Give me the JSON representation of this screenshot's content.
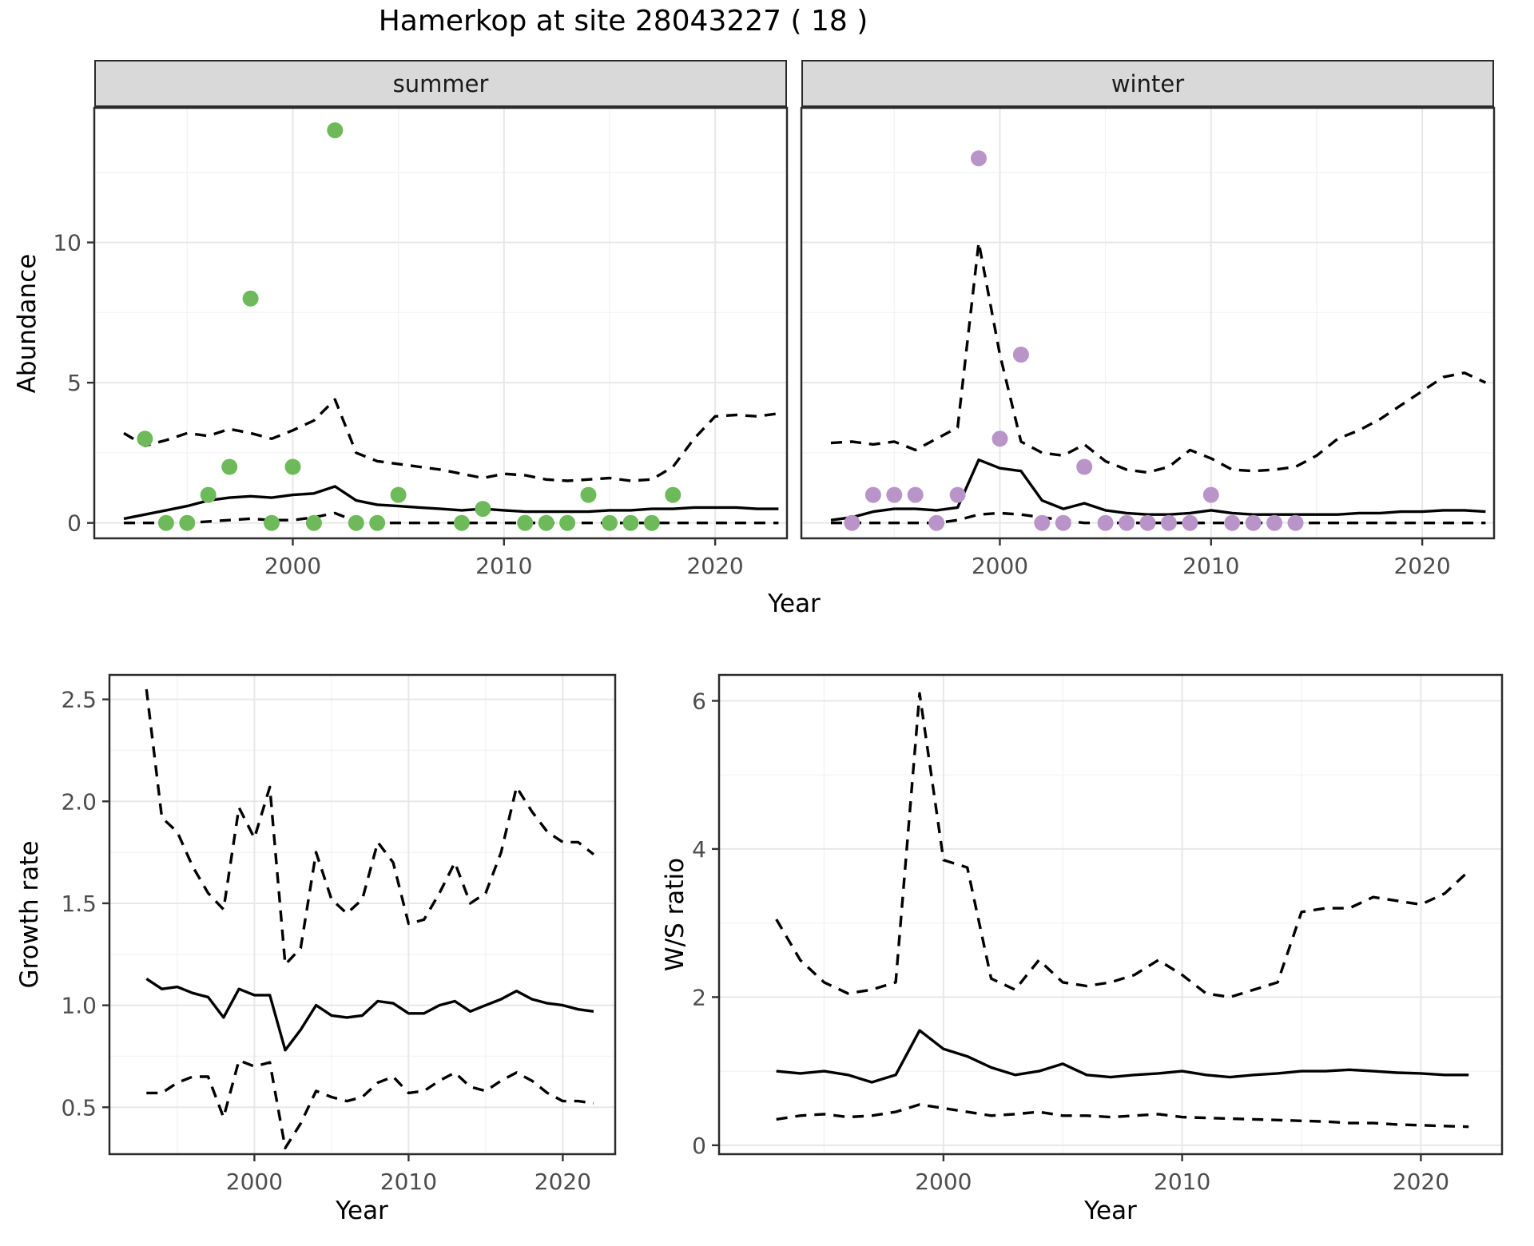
{
  "title": "Hamerkop at site 28043227 ( 18 )",
  "labels": {
    "x_axis": "Year",
    "y_axis_abundance": "Abundance",
    "y_axis_growth": "Growth rate",
    "y_axis_ws": "W/S ratio",
    "facet_summer": "summer",
    "facet_winter": "winter"
  },
  "colors": {
    "summer_points": "#6eb95a",
    "winter_points": "#b994c8",
    "line": "#000000",
    "strip_bg": "#d9d9d9",
    "panel_bg": "#ffffff",
    "panel_border": "#2b2b2b",
    "grid_major": "#e7e7e7",
    "grid_minor": "#f3f3f3",
    "tick_text": "#4d4d4d"
  },
  "chart_data": [
    {
      "id": "abundance_summer",
      "type": "scatter",
      "title": "summer",
      "xlabel": "Year",
      "ylabel": "Abundance",
      "xlim": [
        1990.6,
        2023.4
      ],
      "ylim": [
        -0.55,
        14.8
      ],
      "xticks": [
        2000,
        2010,
        2020
      ],
      "xticklabels": [
        "2000",
        "2010",
        "2020"
      ],
      "xminor": [
        1995,
        2005,
        2015
      ],
      "yticks": [
        0,
        5,
        10
      ],
      "yticklabels": [
        "0",
        "5",
        "10"
      ],
      "yminor": [
        2.5,
        7.5,
        12.5
      ],
      "show_ylabels": true,
      "point_color": "#6eb95a",
      "points": [
        [
          1993,
          3
        ],
        [
          1994,
          0
        ],
        [
          1995,
          0
        ],
        [
          1996,
          1
        ],
        [
          1997,
          2
        ],
        [
          1998,
          8
        ],
        [
          1999,
          0
        ],
        [
          2000,
          2
        ],
        [
          2001,
          0
        ],
        [
          2002,
          14
        ],
        [
          2003,
          0
        ],
        [
          2004,
          0
        ],
        [
          2005,
          1
        ],
        [
          2008,
          0
        ],
        [
          2009,
          0.5
        ],
        [
          2011,
          0
        ],
        [
          2012,
          0
        ],
        [
          2013,
          0
        ],
        [
          2014,
          1
        ],
        [
          2015,
          0
        ],
        [
          2016,
          0
        ],
        [
          2017,
          0
        ],
        [
          2018,
          1
        ]
      ],
      "years": [
        1992,
        1993,
        1994,
        1995,
        1996,
        1997,
        1998,
        1999,
        2000,
        2001,
        2002,
        2003,
        2004,
        2005,
        2006,
        2007,
        2008,
        2009,
        2010,
        2011,
        2012,
        2013,
        2014,
        2015,
        2016,
        2017,
        2018,
        2019,
        2020,
        2021,
        2022,
        2023
      ],
      "series": [
        {
          "name": "mean",
          "style": "solid",
          "values": [
            0.15,
            0.3,
            0.45,
            0.6,
            0.8,
            0.9,
            0.95,
            0.9,
            1.0,
            1.05,
            1.3,
            0.8,
            0.65,
            0.6,
            0.55,
            0.5,
            0.45,
            0.5,
            0.45,
            0.4,
            0.4,
            0.4,
            0.4,
            0.45,
            0.45,
            0.5,
            0.5,
            0.55,
            0.55,
            0.55,
            0.5,
            0.5
          ]
        },
        {
          "name": "upper_ci",
          "style": "dashed",
          "values": [
            3.2,
            2.75,
            2.95,
            3.2,
            3.1,
            3.35,
            3.2,
            3.0,
            3.3,
            3.65,
            4.4,
            2.5,
            2.2,
            2.1,
            2.0,
            1.9,
            1.75,
            1.6,
            1.75,
            1.7,
            1.55,
            1.5,
            1.55,
            1.6,
            1.5,
            1.55,
            2.0,
            3.0,
            3.8,
            3.85,
            3.8,
            3.9
          ]
        },
        {
          "name": "lower_ci",
          "style": "dashed",
          "values": [
            0,
            0,
            0,
            0,
            0.05,
            0.1,
            0.15,
            0.1,
            0.1,
            0.2,
            0.35,
            0.05,
            0,
            0,
            0,
            0,
            0,
            0,
            0,
            0,
            0,
            0,
            0,
            0,
            0,
            0,
            0,
            0,
            0,
            0,
            0,
            0
          ]
        }
      ]
    },
    {
      "id": "abundance_winter",
      "type": "scatter",
      "title": "winter",
      "xlabel": "Year",
      "ylabel": "Abundance",
      "xlim": [
        1990.6,
        2023.4
      ],
      "ylim": [
        -0.55,
        14.8
      ],
      "xticks": [
        2000,
        2010,
        2020
      ],
      "xticklabels": [
        "2000",
        "2010",
        "2020"
      ],
      "xminor": [
        1995,
        2005,
        2015
      ],
      "yticks": [
        0,
        5,
        10
      ],
      "yticklabels": [
        "0",
        "5",
        "10"
      ],
      "yminor": [
        2.5,
        7.5,
        12.5
      ],
      "show_ylabels": false,
      "point_color": "#b994c8",
      "points": [
        [
          1993,
          0
        ],
        [
          1994,
          1
        ],
        [
          1995,
          1
        ],
        [
          1996,
          1
        ],
        [
          1997,
          0
        ],
        [
          1998,
          1
        ],
        [
          1999,
          13
        ],
        [
          2000,
          3
        ],
        [
          2001,
          6
        ],
        [
          2002,
          0
        ],
        [
          2003,
          0
        ],
        [
          2004,
          2
        ],
        [
          2005,
          0
        ],
        [
          2006,
          0
        ],
        [
          2007,
          0
        ],
        [
          2008,
          0
        ],
        [
          2009,
          0
        ],
        [
          2010,
          1
        ],
        [
          2011,
          0
        ],
        [
          2012,
          0
        ],
        [
          2013,
          0
        ],
        [
          2014,
          0
        ]
      ],
      "years": [
        1992,
        1993,
        1994,
        1995,
        1996,
        1997,
        1998,
        1999,
        2000,
        2001,
        2002,
        2003,
        2004,
        2005,
        2006,
        2007,
        2008,
        2009,
        2010,
        2011,
        2012,
        2013,
        2014,
        2015,
        2016,
        2017,
        2018,
        2019,
        2020,
        2021,
        2022,
        2023
      ],
      "series": [
        {
          "name": "mean",
          "style": "solid",
          "values": [
            0.1,
            0.2,
            0.4,
            0.5,
            0.5,
            0.45,
            0.55,
            2.25,
            1.95,
            1.85,
            0.8,
            0.5,
            0.7,
            0.45,
            0.35,
            0.3,
            0.3,
            0.35,
            0.45,
            0.35,
            0.3,
            0.3,
            0.3,
            0.3,
            0.3,
            0.35,
            0.35,
            0.4,
            0.4,
            0.45,
            0.45,
            0.4
          ]
        },
        {
          "name": "upper_ci",
          "style": "dashed",
          "values": [
            2.85,
            2.9,
            2.8,
            2.9,
            2.6,
            3.0,
            3.4,
            10.0,
            6.0,
            2.9,
            2.5,
            2.4,
            2.8,
            2.2,
            1.9,
            1.8,
            2.0,
            2.6,
            2.3,
            1.9,
            1.85,
            1.9,
            2.0,
            2.4,
            3.0,
            3.3,
            3.7,
            4.2,
            4.7,
            5.2,
            5.35,
            5.0
          ]
        },
        {
          "name": "lower_ci",
          "style": "dashed",
          "values": [
            0,
            0,
            0,
            0,
            0,
            0,
            0.1,
            0.3,
            0.35,
            0.3,
            0.2,
            0.1,
            0,
            0,
            0,
            0,
            0,
            0,
            0,
            0,
            0,
            0,
            0,
            0,
            0,
            0,
            0,
            0,
            0,
            0,
            0,
            0
          ]
        }
      ]
    },
    {
      "id": "growth_rate",
      "type": "line",
      "title": "",
      "xlabel": "Year",
      "ylabel": "Growth rate",
      "xlim": [
        1990.6,
        2023.4
      ],
      "ylim": [
        0.27,
        2.62
      ],
      "xticks": [
        2000,
        2010,
        2020
      ],
      "xticklabels": [
        "2000",
        "2010",
        "2020"
      ],
      "xminor": [
        1995,
        2005,
        2015
      ],
      "yticks": [
        0.5,
        1.0,
        1.5,
        2.0,
        2.5
      ],
      "yticklabels": [
        "0.5",
        "1.0",
        "1.5",
        "2.0",
        "2.5"
      ],
      "yminor": [
        0.75,
        1.25,
        1.75,
        2.25
      ],
      "show_ylabels": true,
      "point_color": null,
      "points": [],
      "years": [
        1993,
        1994,
        1995,
        1996,
        1997,
        1998,
        1999,
        2000,
        2001,
        2002,
        2003,
        2004,
        2005,
        2006,
        2007,
        2008,
        2009,
        2010,
        2011,
        2012,
        2013,
        2014,
        2015,
        2016,
        2017,
        2018,
        2019,
        2020,
        2021,
        2022
      ],
      "series": [
        {
          "name": "mean",
          "style": "solid",
          "values": [
            1.13,
            1.08,
            1.09,
            1.06,
            1.04,
            0.94,
            1.08,
            1.05,
            1.05,
            0.78,
            0.88,
            1.0,
            0.95,
            0.94,
            0.95,
            1.02,
            1.01,
            0.96,
            0.96,
            1.0,
            1.02,
            0.97,
            1.0,
            1.03,
            1.07,
            1.03,
            1.01,
            1.0,
            0.98,
            0.97
          ]
        },
        {
          "name": "upper_ci",
          "style": "dashed",
          "values": [
            2.55,
            1.92,
            1.85,
            1.68,
            1.55,
            1.47,
            1.97,
            1.82,
            2.07,
            1.2,
            1.28,
            1.75,
            1.52,
            1.45,
            1.52,
            1.8,
            1.7,
            1.4,
            1.42,
            1.55,
            1.7,
            1.5,
            1.55,
            1.75,
            2.07,
            1.95,
            1.85,
            1.8,
            1.8,
            1.74
          ]
        },
        {
          "name": "lower_ci",
          "style": "dashed",
          "values": [
            0.57,
            0.57,
            0.62,
            0.65,
            0.65,
            0.45,
            0.73,
            0.7,
            0.72,
            0.3,
            0.42,
            0.58,
            0.55,
            0.53,
            0.55,
            0.62,
            0.65,
            0.57,
            0.58,
            0.63,
            0.67,
            0.6,
            0.58,
            0.63,
            0.67,
            0.63,
            0.57,
            0.53,
            0.53,
            0.52
          ]
        }
      ]
    },
    {
      "id": "ws_ratio",
      "type": "line",
      "title": "",
      "xlabel": "Year",
      "ylabel": "W/S ratio",
      "xlim": [
        1990.6,
        2023.4
      ],
      "ylim": [
        -0.12,
        6.35
      ],
      "xticks": [
        2000,
        2010,
        2020
      ],
      "xticklabels": [
        "2000",
        "2010",
        "2020"
      ],
      "xminor": [
        1995,
        2005,
        2015
      ],
      "yticks": [
        0,
        2,
        4,
        6
      ],
      "yticklabels": [
        "0",
        "2",
        "4",
        "6"
      ],
      "yminor": [
        1,
        3,
        5
      ],
      "show_ylabels": true,
      "point_color": null,
      "points": [],
      "years": [
        1993,
        1994,
        1995,
        1996,
        1997,
        1998,
        1999,
        2000,
        2001,
        2002,
        2003,
        2004,
        2005,
        2006,
        2007,
        2008,
        2009,
        2010,
        2011,
        2012,
        2013,
        2014,
        2015,
        2016,
        2017,
        2018,
        2019,
        2020,
        2021,
        2022
      ],
      "series": [
        {
          "name": "mean",
          "style": "solid",
          "values": [
            1.0,
            0.97,
            1.0,
            0.95,
            0.85,
            0.95,
            1.55,
            1.3,
            1.2,
            1.05,
            0.95,
            1.0,
            1.1,
            0.95,
            0.92,
            0.95,
            0.97,
            1.0,
            0.95,
            0.92,
            0.95,
            0.97,
            1.0,
            1.0,
            1.02,
            1.0,
            0.98,
            0.97,
            0.95,
            0.95
          ]
        },
        {
          "name": "upper_ci",
          "style": "dashed",
          "values": [
            3.05,
            2.5,
            2.2,
            2.05,
            2.1,
            2.2,
            6.1,
            3.85,
            3.75,
            2.25,
            2.1,
            2.5,
            2.2,
            2.15,
            2.2,
            2.3,
            2.5,
            2.3,
            2.05,
            2.0,
            2.1,
            2.2,
            3.15,
            3.2,
            3.2,
            3.35,
            3.3,
            3.25,
            3.4,
            3.7
          ]
        },
        {
          "name": "lower_ci",
          "style": "dashed",
          "values": [
            0.35,
            0.4,
            0.42,
            0.38,
            0.4,
            0.45,
            0.55,
            0.5,
            0.45,
            0.4,
            0.42,
            0.45,
            0.4,
            0.4,
            0.38,
            0.4,
            0.42,
            0.38,
            0.37,
            0.36,
            0.35,
            0.34,
            0.33,
            0.32,
            0.3,
            0.3,
            0.28,
            0.27,
            0.26,
            0.25
          ]
        }
      ]
    }
  ]
}
